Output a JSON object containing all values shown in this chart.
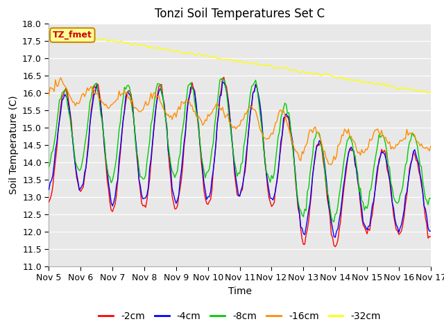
{
  "title": "Tonzi Soil Temperatures Set C",
  "xlabel": "Time",
  "ylabel": "Soil Temperature (C)",
  "ylim": [
    11.0,
    18.0
  ],
  "yticks": [
    11.0,
    11.5,
    12.0,
    12.5,
    13.0,
    13.5,
    14.0,
    14.5,
    15.0,
    15.5,
    16.0,
    16.5,
    17.0,
    17.5,
    18.0
  ],
  "xtick_labels": [
    "Nov 5",
    "Nov 6",
    "Nov 7",
    "Nov 8",
    "Nov 9",
    "Nov 10",
    "Nov 11",
    "Nov 12",
    "Nov 13",
    "Nov 14",
    "Nov 15",
    "Nov 16",
    "Nov 17"
  ],
  "xtick_positions": [
    0,
    24,
    48,
    72,
    96,
    120,
    144,
    168,
    192,
    216,
    240,
    264,
    288
  ],
  "n_points": 289,
  "colors": {
    "-2cm": "#ff0000",
    "-4cm": "#0000ff",
    "-8cm": "#00cc00",
    "-16cm": "#ff8c00",
    "-32cm": "#ffff00"
  },
  "label_box": {
    "text": "TZ_fmet",
    "facecolor": "#ffff99",
    "edgecolor": "#cc8800",
    "textcolor": "#cc0000"
  },
  "plot_bg": "#e8e8e8",
  "title_fontsize": 12,
  "axis_fontsize": 10,
  "tick_fontsize": 9,
  "legend_fontsize": 10,
  "line_width": 1.0
}
